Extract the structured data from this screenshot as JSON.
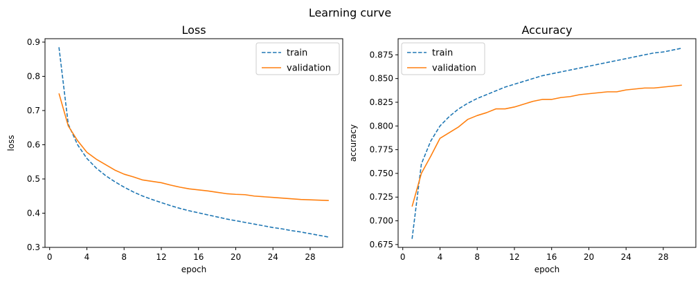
{
  "figure": {
    "suptitle": "Learning curve"
  },
  "chart_data": [
    {
      "type": "line",
      "title": "Loss",
      "xlabel": "epoch",
      "ylabel": "loss",
      "xlim": [
        -0.5,
        31.5
      ],
      "ylim": [
        0.3,
        0.91
      ],
      "xticks": [
        0,
        4,
        8,
        12,
        16,
        20,
        24,
        28
      ],
      "yticks": [
        0.3,
        0.4,
        0.5,
        0.6,
        0.7,
        0.8,
        0.9
      ],
      "ytick_labels": [
        "0.3",
        "0.4",
        "0.5",
        "0.6",
        "0.7",
        "0.8",
        "0.9"
      ],
      "legend": "top-right",
      "grid": false,
      "x": [
        1,
        2,
        3,
        4,
        5,
        6,
        7,
        8,
        9,
        10,
        11,
        12,
        13,
        14,
        15,
        16,
        17,
        18,
        19,
        20,
        21,
        22,
        23,
        24,
        25,
        26,
        27,
        28,
        29,
        30
      ],
      "series": [
        {
          "name": "train",
          "color": "#1f77b4",
          "dash": "dashed",
          "values": [
            0.885,
            0.66,
            0.6,
            0.56,
            0.532,
            0.51,
            0.492,
            0.476,
            0.462,
            0.45,
            0.44,
            0.431,
            0.422,
            0.414,
            0.407,
            0.401,
            0.395,
            0.389,
            0.383,
            0.378,
            0.373,
            0.368,
            0.363,
            0.358,
            0.354,
            0.349,
            0.345,
            0.34,
            0.335,
            0.33
          ]
        },
        {
          "name": "validation",
          "color": "#ff7f0e",
          "dash": "solid",
          "values": [
            0.75,
            0.655,
            0.612,
            0.578,
            0.558,
            0.542,
            0.526,
            0.514,
            0.506,
            0.497,
            0.493,
            0.489,
            0.482,
            0.476,
            0.471,
            0.468,
            0.465,
            0.461,
            0.457,
            0.455,
            0.454,
            0.45,
            0.448,
            0.446,
            0.444,
            0.442,
            0.44,
            0.439,
            0.438,
            0.437
          ]
        }
      ]
    },
    {
      "type": "line",
      "title": "Accuracy",
      "xlabel": "epoch",
      "ylabel": "accuracy",
      "xlim": [
        -0.5,
        31.5
      ],
      "ylim": [
        0.672,
        0.892
      ],
      "xticks": [
        0,
        4,
        8,
        12,
        16,
        20,
        24,
        28
      ],
      "yticks": [
        0.675,
        0.7,
        0.725,
        0.75,
        0.775,
        0.8,
        0.825,
        0.85,
        0.875
      ],
      "ytick_labels": [
        "0.675",
        "0.700",
        "0.725",
        "0.750",
        "0.775",
        "0.800",
        "0.825",
        "0.850",
        "0.875"
      ],
      "legend": "top-left",
      "grid": false,
      "x": [
        1,
        2,
        3,
        4,
        5,
        6,
        7,
        8,
        9,
        10,
        11,
        12,
        13,
        14,
        15,
        16,
        17,
        18,
        19,
        20,
        21,
        22,
        23,
        24,
        25,
        26,
        27,
        28,
        29,
        30
      ],
      "series": [
        {
          "name": "train",
          "color": "#1f77b4",
          "dash": "dashed",
          "values": [
            0.681,
            0.76,
            0.784,
            0.8,
            0.81,
            0.818,
            0.824,
            0.829,
            0.833,
            0.837,
            0.841,
            0.844,
            0.847,
            0.85,
            0.853,
            0.855,
            0.857,
            0.859,
            0.861,
            0.863,
            0.865,
            0.867,
            0.869,
            0.871,
            0.873,
            0.875,
            0.877,
            0.878,
            0.88,
            0.882
          ]
        },
        {
          "name": "validation",
          "color": "#ff7f0e",
          "dash": "solid",
          "values": [
            0.715,
            0.75,
            0.768,
            0.787,
            0.793,
            0.799,
            0.807,
            0.811,
            0.814,
            0.818,
            0.818,
            0.82,
            0.823,
            0.826,
            0.828,
            0.828,
            0.83,
            0.831,
            0.833,
            0.834,
            0.835,
            0.836,
            0.836,
            0.838,
            0.839,
            0.84,
            0.84,
            0.841,
            0.842,
            0.843
          ]
        }
      ]
    }
  ]
}
